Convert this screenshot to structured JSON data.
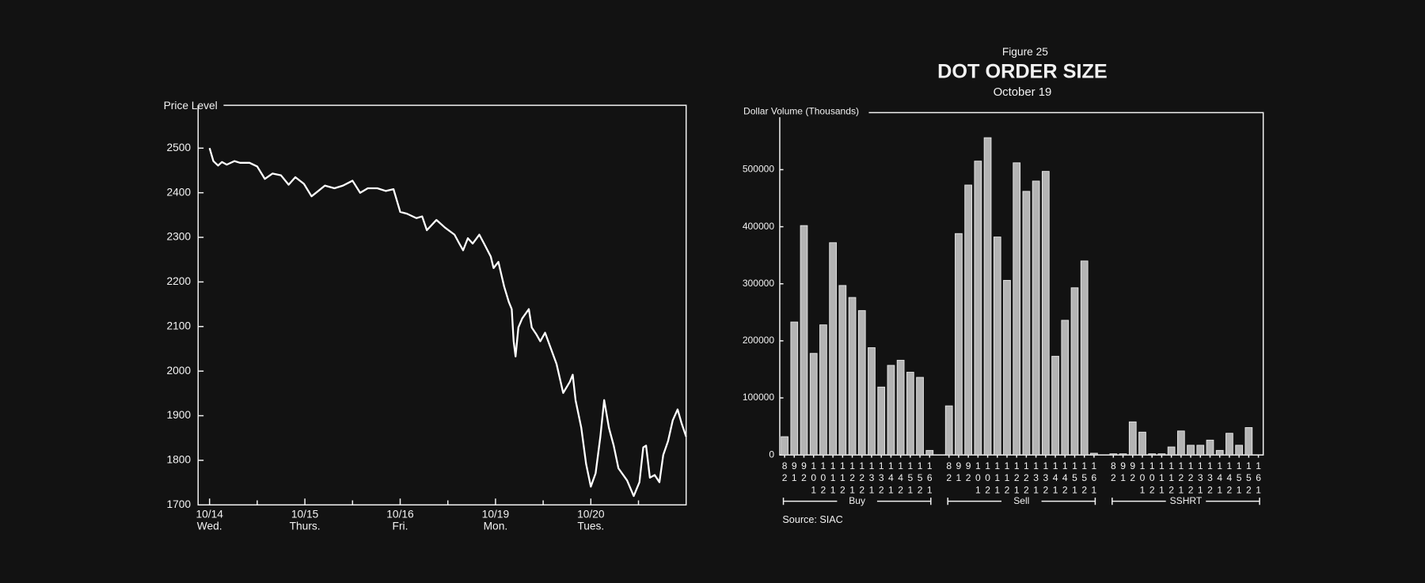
{
  "chart_data": [
    {
      "type": "line",
      "ylabel": "Price Level",
      "xlim": [
        -0.12,
        5
      ],
      "ylim": [
        1700,
        2596
      ],
      "xticks": [
        {
          "value": 0,
          "label": "10/14"
        },
        {
          "value": 1,
          "label": "10/15"
        },
        {
          "value": 2,
          "label": "10/16"
        },
        {
          "value": 3,
          "label": "10/19"
        },
        {
          "value": 4,
          "label": "10/20"
        }
      ],
      "xtick_days": [
        "Wed.",
        "Thurs.",
        "Fri.",
        "Mon.",
        "Tues."
      ],
      "xminorticks": [
        0.5,
        1.5,
        2.5,
        3.5,
        4.5
      ],
      "yticks": [
        1700,
        1800,
        1900,
        2000,
        2100,
        2200,
        2300,
        2400,
        2500
      ],
      "color": "#ffffff",
      "x": [
        0,
        0.04,
        0.09,
        0.13,
        0.18,
        0.26,
        0.32,
        0.42,
        0.5,
        0.58,
        0.66,
        0.75,
        0.83,
        0.9,
        0.99,
        1.07,
        1.14,
        1.21,
        1.31,
        1.4,
        1.5,
        1.58,
        1.66,
        1.76,
        1.85,
        1.93,
        2.0,
        2.07,
        2.17,
        2.23,
        2.28,
        2.38,
        2.47,
        2.57,
        2.62,
        2.66,
        2.71,
        2.76,
        2.83,
        2.88,
        2.95,
        2.98,
        3.03,
        3.09,
        3.14,
        3.17,
        3.19,
        3.21,
        3.24,
        3.28,
        3.35,
        3.38,
        3.43,
        3.47,
        3.52,
        3.57,
        3.64,
        3.71,
        3.78,
        3.81,
        3.84,
        3.9,
        3.95,
        4.0,
        4.05,
        4.1,
        4.14,
        4.19,
        4.24,
        4.29,
        4.38,
        4.45,
        4.51,
        4.55,
        4.58,
        4.62,
        4.67,
        4.72,
        4.76,
        4.81,
        4.86,
        4.91,
        4.95,
        5.0
      ],
      "values": [
        2500,
        2471,
        2461,
        2469,
        2463,
        2471,
        2467,
        2467,
        2459,
        2431,
        2443,
        2439,
        2418,
        2435,
        2420,
        2392,
        2404,
        2416,
        2410,
        2416,
        2427,
        2400,
        2410,
        2410,
        2404,
        2408,
        2357,
        2353,
        2343,
        2347,
        2316,
        2339,
        2322,
        2306,
        2286,
        2271,
        2298,
        2286,
        2306,
        2286,
        2257,
        2231,
        2245,
        2190,
        2155,
        2139,
        2067,
        2033,
        2098,
        2118,
        2139,
        2098,
        2082,
        2067,
        2086,
        2057,
        2016,
        1951,
        1976,
        1992,
        1935,
        1873,
        1792,
        1741,
        1771,
        1853,
        1935,
        1873,
        1833,
        1782,
        1755,
        1720,
        1751,
        1829,
        1833,
        1761,
        1767,
        1751,
        1812,
        1843,
        1890,
        1914,
        1884,
        1853
      ]
    },
    {
      "type": "grouped-bar",
      "figure": "Figure 25",
      "title": "DOT ORDER SIZE",
      "subtitle": "October 19",
      "ylabel": "Dollar Volume (Thousands)",
      "source": "Source: SIAC",
      "ylim": [
        0,
        600000
      ],
      "yticks": [
        0,
        100000,
        200000,
        300000,
        400000,
        500000
      ],
      "color": "#b4b4b4",
      "groups": [
        {
          "name": "Buy",
          "categories": [
            "82",
            "91",
            "92",
            "101",
            "102",
            "111",
            "112",
            "121",
            "122",
            "131",
            "132",
            "141",
            "142",
            "151",
            "152",
            "161"
          ],
          "values": [
            32000,
            233000,
            402000,
            178000,
            228000,
            372000,
            297000,
            276000,
            253000,
            188000,
            119000,
            157000,
            166000,
            145000,
            136000,
            8000
          ]
        },
        {
          "name": "Sell",
          "categories": [
            "82",
            "91",
            "92",
            "101",
            "102",
            "111",
            "112",
            "121",
            "122",
            "131",
            "132",
            "141",
            "142",
            "151",
            "152",
            "161"
          ],
          "values": [
            86000,
            388000,
            473000,
            515000,
            556000,
            382000,
            306000,
            512000,
            462000,
            480000,
            497000,
            173000,
            236000,
            293000,
            340000,
            3000
          ]
        },
        {
          "name": "SSHRT",
          "categories": [
            "82",
            "91",
            "92",
            "101",
            "102",
            "111",
            "112",
            "121",
            "122",
            "131",
            "132",
            "141",
            "142",
            "151",
            "152",
            "161"
          ],
          "values": [
            2000,
            2000,
            58000,
            40000,
            2000,
            2000,
            14000,
            42000,
            17000,
            17000,
            26000,
            8000,
            38000,
            17000,
            48000,
            0
          ]
        }
      ]
    }
  ]
}
